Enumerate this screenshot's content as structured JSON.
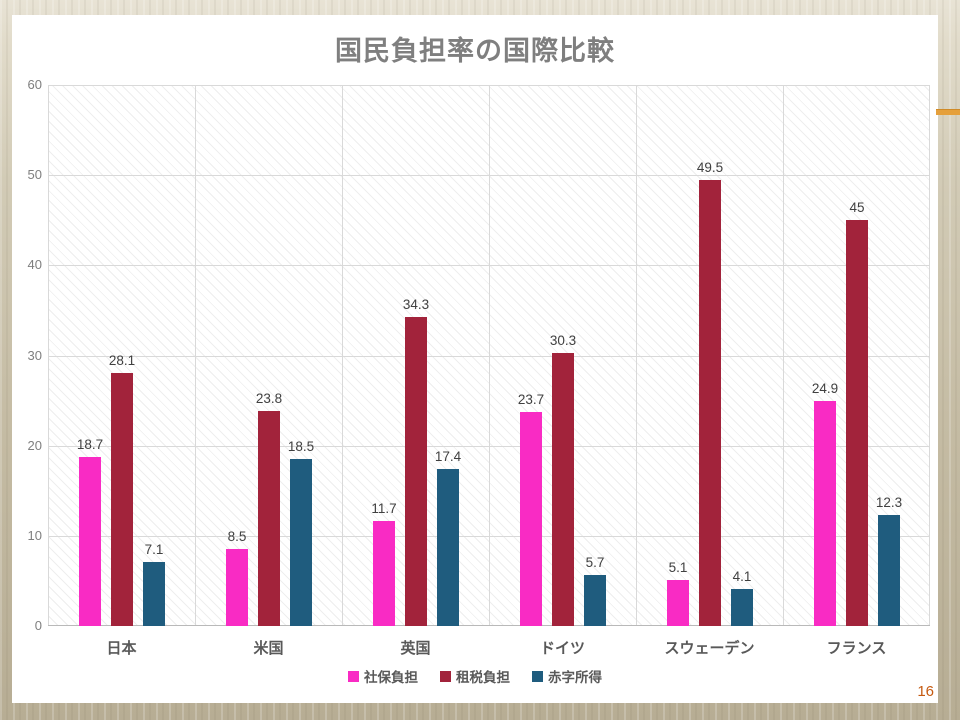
{
  "slide": {
    "page_number": "16",
    "page_number_color": "#C55A11",
    "background_base_color": "#C5BCA4",
    "gold_accent_color": "#E5A03C"
  },
  "chart_data": {
    "type": "bar",
    "title": "国民負担率の国際比較",
    "title_color": "#7F7F7F",
    "categories": [
      "日本",
      "米国",
      "英国",
      "ドイツ",
      "スウェーデン",
      "フランス"
    ],
    "series": [
      {
        "name": "社保負担",
        "color": "#F92BC4",
        "values": [
          18.7,
          8.5,
          11.7,
          23.7,
          5.1,
          24.9
        ]
      },
      {
        "name": "租税負担",
        "color": "#A2233B",
        "values": [
          28.1,
          23.8,
          34.3,
          30.3,
          49.5,
          45
        ]
      },
      {
        "name": "赤字所得",
        "color": "#1F5C7E",
        "values": [
          7.1,
          18.5,
          17.4,
          5.7,
          4.1,
          12.3
        ]
      }
    ],
    "xlabel": "",
    "ylabel": "",
    "ylim": [
      0,
      60
    ],
    "yticks": [
      0,
      10,
      20,
      30,
      40,
      50,
      60
    ],
    "grid": true,
    "plot_hatch": "diagonal",
    "gridline_color": "#D9D9D9",
    "data_labels": true,
    "data_label_color": "#404040",
    "legend_position": "bottom"
  }
}
